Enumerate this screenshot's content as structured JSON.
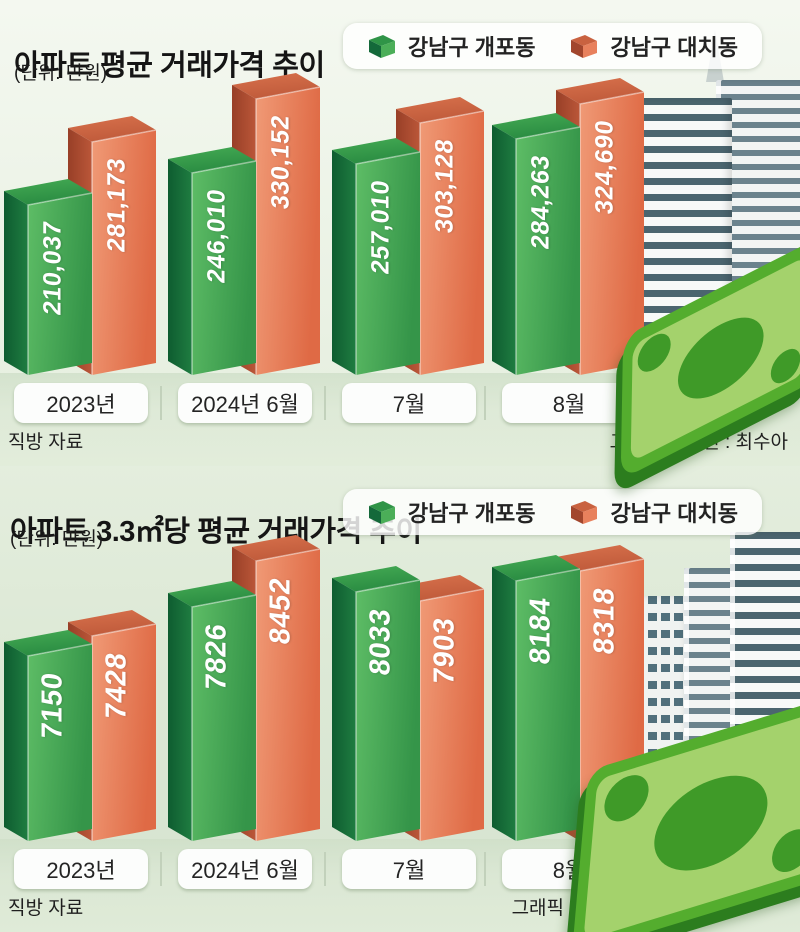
{
  "page": {
    "background_color": "#e9f1e3",
    "green_series_color": "#3c9d4c",
    "orange_series_color": "#e0704d",
    "value_text_color": "#ffffff"
  },
  "sections": [
    {
      "title": "아파트 평균 거래가격 추이",
      "unit": "(단위: 만원)",
      "legend": [
        {
          "label": "강남구 개포동",
          "color": "#3c9d4c"
        },
        {
          "label": "강남구 대치동",
          "color": "#e0704d"
        }
      ],
      "source": "직방 자료",
      "credit": "그래픽 디자인 : 최수아"
    },
    {
      "title": "아파트 3.3㎡당 평균 거래가격 추이",
      "unit": "(단위: 만원)",
      "legend": [
        {
          "label": "강남구 개포동",
          "color": "#3c9d4c"
        },
        {
          "label": "강남구 대치동",
          "color": "#e0704d"
        }
      ],
      "source": "직방 자료",
      "credit": "그래픽 디자인 : 최수아"
    }
  ],
  "chart_data": [
    {
      "type": "bar",
      "title": "아파트 평균 거래가격 추이",
      "unit": "만원",
      "categories": [
        "2023년",
        "2024년 6월",
        "7월",
        "8월"
      ],
      "series": [
        {
          "name": "강남구 개포동",
          "color": "#3c9d4c",
          "values": [
            210037,
            246010,
            257010,
            284263
          ],
          "labels": [
            "210,037",
            "246,010",
            "257,010",
            "284,263"
          ]
        },
        {
          "name": "강남구 대치동",
          "color": "#e0704d",
          "values": [
            281173,
            330152,
            303128,
            324690
          ],
          "labels": [
            "281,173",
            "330,152",
            "303,128",
            "324,690"
          ]
        }
      ],
      "legend_position": "top-right",
      "grid": false,
      "value_labels_on_bars": true
    },
    {
      "type": "bar",
      "title": "아파트 3.3㎡당 평균 거래가격 추이",
      "unit": "만원",
      "categories": [
        "2023년",
        "2024년 6월",
        "7월",
        "8월"
      ],
      "series": [
        {
          "name": "강남구 개포동",
          "color": "#3c9d4c",
          "values": [
            7150,
            7826,
            8033,
            8184
          ],
          "labels": [
            "7150",
            "7826",
            "8033",
            "8184"
          ]
        },
        {
          "name": "강남구 대치동",
          "color": "#e0704d",
          "values": [
            7428,
            8452,
            7903,
            8318
          ],
          "labels": [
            "7428",
            "8452",
            "7903",
            "8318"
          ]
        }
      ],
      "legend_position": "top-right",
      "grid": false,
      "value_labels_on_bars": true
    }
  ]
}
